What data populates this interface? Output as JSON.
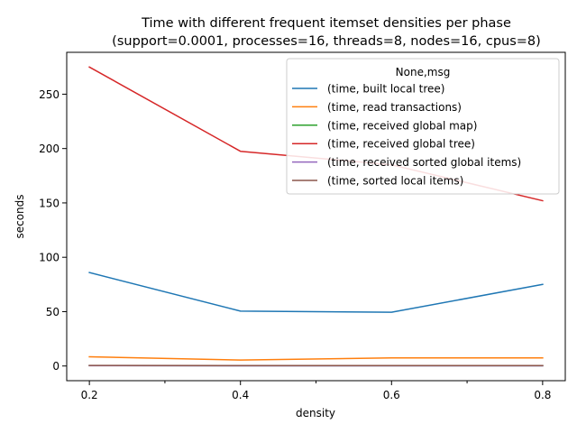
{
  "chart_data": {
    "type": "line",
    "title_line1": "Time with different frequent itemset densities per phase",
    "title_line2": "(support=0.0001, processes=16, threads=8, nodes=16, cpus=8)",
    "xlabel": "density",
    "ylabel": "seconds",
    "x": [
      0.2,
      0.4,
      0.6,
      0.8
    ],
    "x_ticks": [
      "0.2",
      "0.4",
      "0.6",
      "0.8"
    ],
    "x_minor_ticks": [
      0.3,
      0.5,
      0.7
    ],
    "xlim": [
      0.17,
      0.83
    ],
    "ylim": [
      -13.5,
      288.5
    ],
    "y_ticks": [
      0,
      50,
      100,
      150,
      200,
      250
    ],
    "y_tick_labels": [
      "0",
      "50",
      "100",
      "150",
      "200",
      "250"
    ],
    "grid": false,
    "legend_title": "None,msg",
    "legend_position": "top-right",
    "series": [
      {
        "name": "(time, built local tree)",
        "color": "#1f77b4",
        "values": [
          86,
          50.5,
          49.5,
          75
        ]
      },
      {
        "name": "(time, read transactions)",
        "color": "#ff7f0e",
        "values": [
          8.5,
          5.5,
          7.5,
          7.5
        ]
      },
      {
        "name": "(time, received global map)",
        "color": "#2ca02c",
        "values": [
          0.4,
          0.3,
          0.3,
          0.3
        ]
      },
      {
        "name": "(time, received global tree)",
        "color": "#d62728",
        "values": [
          275,
          197.5,
          185,
          152
        ]
      },
      {
        "name": "(time, received sorted global items)",
        "color": "#9467bd",
        "values": [
          0.3,
          0.2,
          0.2,
          0.2
        ]
      },
      {
        "name": "(time, sorted local items)",
        "color": "#8c564b",
        "values": [
          0.5,
          0.4,
          0.4,
          0.4
        ]
      }
    ]
  }
}
